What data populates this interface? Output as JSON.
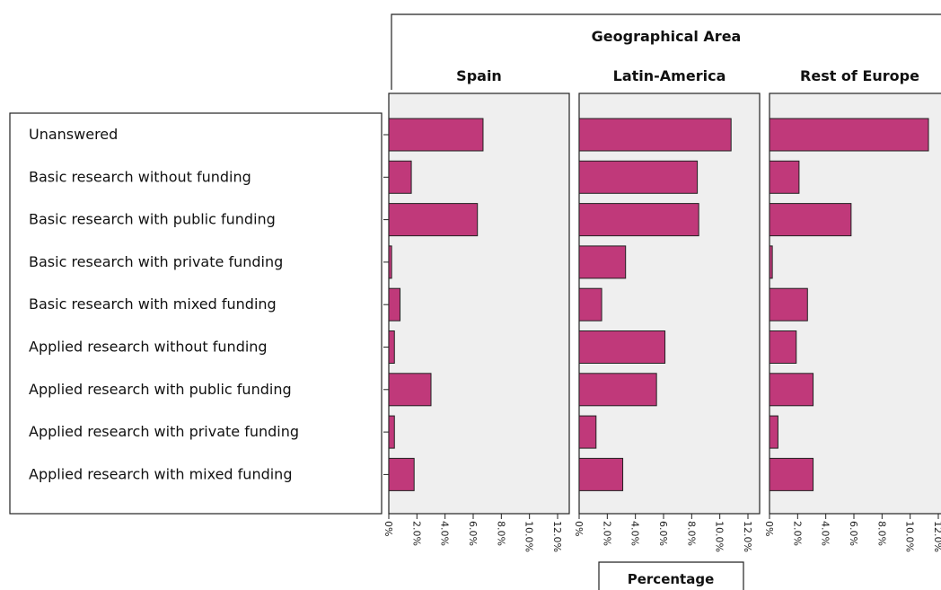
{
  "chart_data": {
    "type": "bar",
    "orientation": "horizontal",
    "facet_title": "Geographical Area",
    "xlabel": "Percentage",
    "xlim": [
      0,
      12
    ],
    "x_ticks": [
      "0%",
      "2.0%",
      "4.0%",
      "6.0%",
      "8.0%",
      "10.0%",
      "12.0%"
    ],
    "bar_color": "#c0397a",
    "panel_background": "#efefef",
    "categories": [
      "Unanswered",
      "Basic research without funding",
      "Basic research with public funding",
      "Basic research with private funding",
      "Basic research with mixed funding",
      "Applied research without funding",
      "Applied research with public funding",
      "Applied research with private funding",
      "Applied research with mixed funding"
    ],
    "series": [
      {
        "name": "Spain",
        "values": [
          6.7,
          1.6,
          6.3,
          0.2,
          0.8,
          0.4,
          3.0,
          0.4,
          1.8
        ]
      },
      {
        "name": "Latin-America",
        "values": [
          10.8,
          8.4,
          8.5,
          3.3,
          1.6,
          6.1,
          5.5,
          1.2,
          3.1
        ]
      },
      {
        "name": "Rest of Europe",
        "values": [
          11.3,
          2.1,
          5.8,
          0.2,
          2.7,
          1.9,
          3.1,
          0.6,
          3.1
        ]
      }
    ]
  }
}
